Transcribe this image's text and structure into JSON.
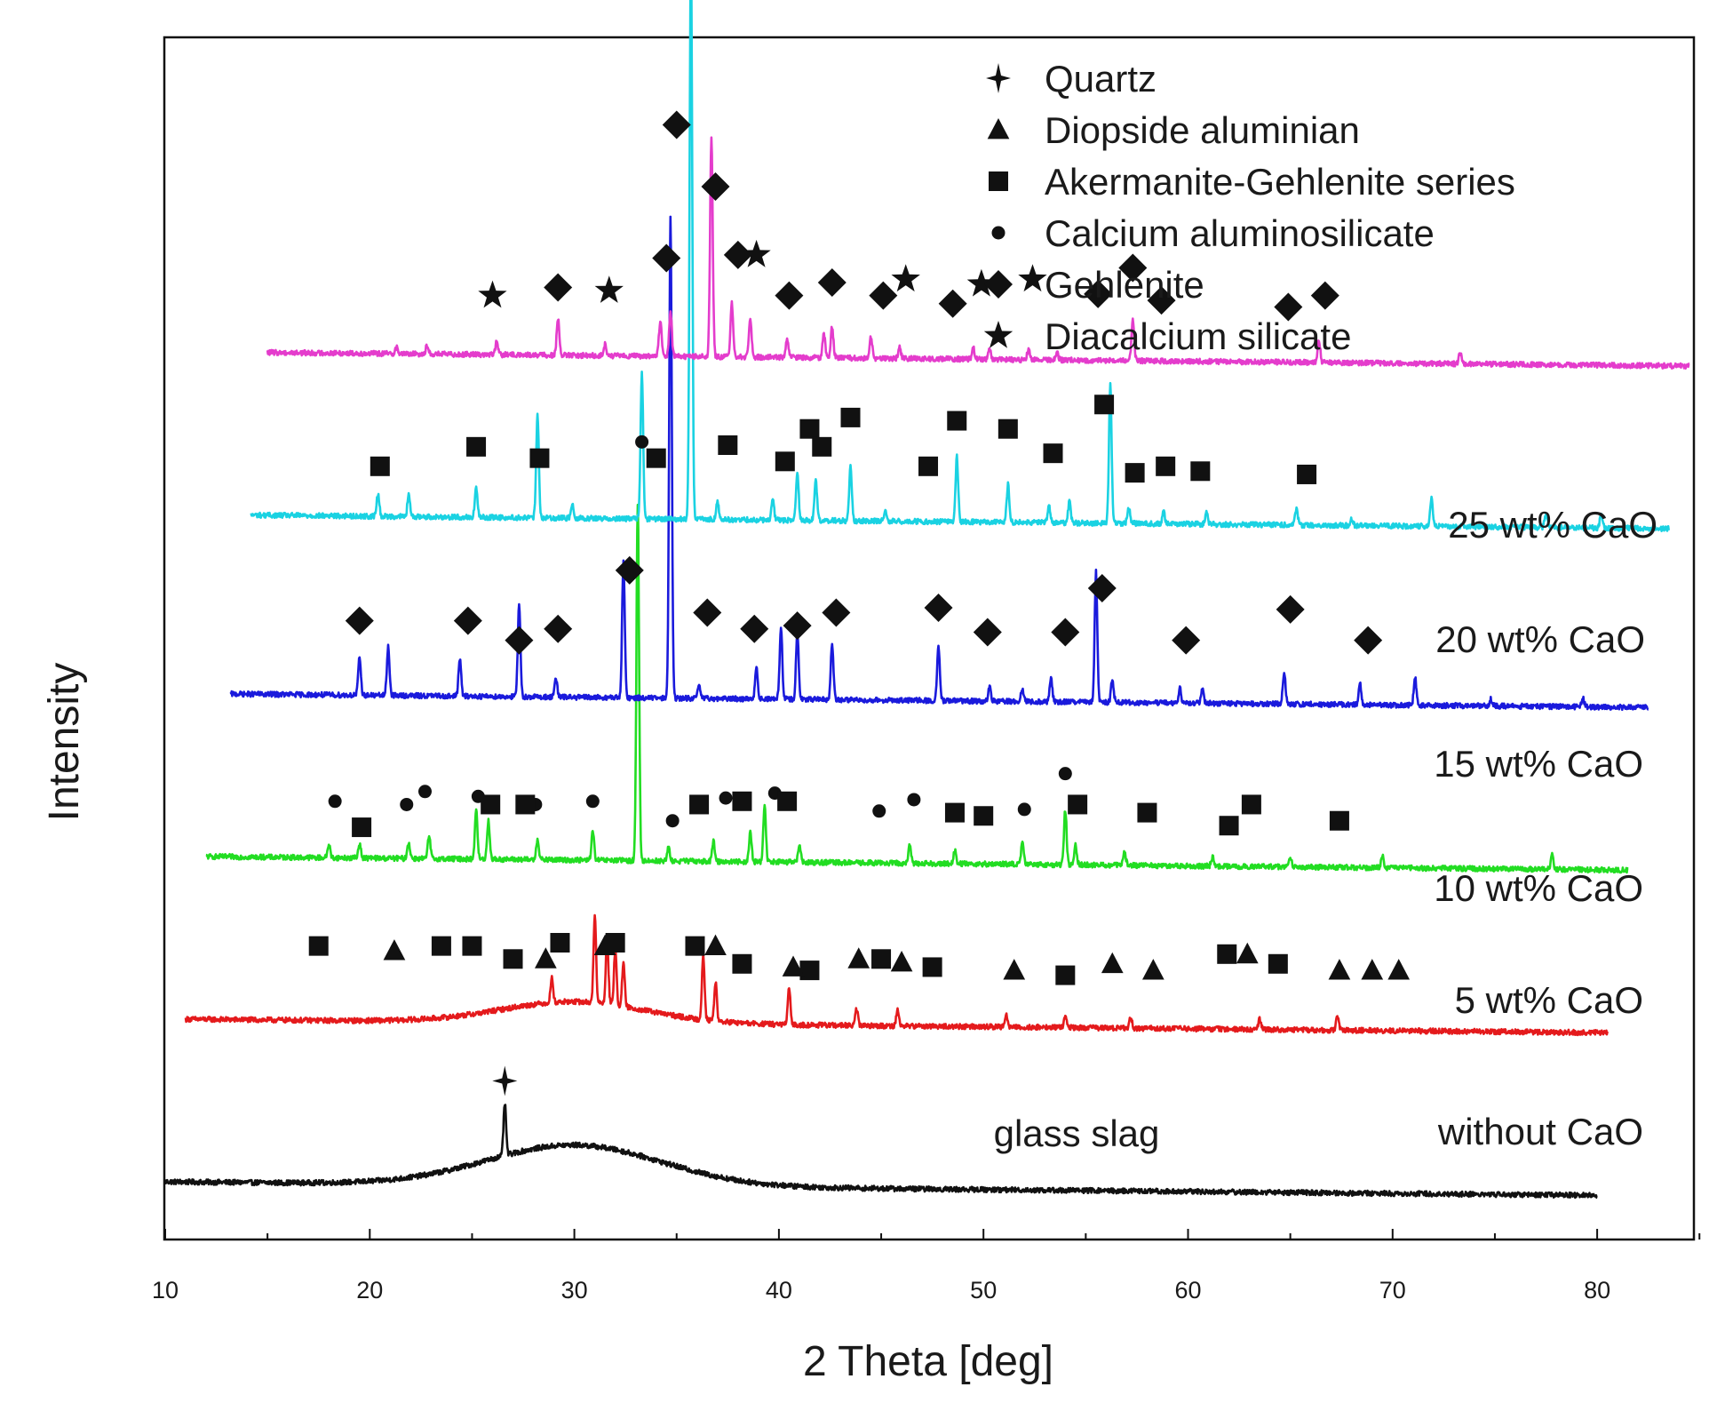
{
  "chart_data": {
    "type": "line",
    "title": "",
    "xlabel": "2 Theta [deg]",
    "ylabel": "Intensity",
    "xlim": [
      10,
      85
    ],
    "x_ticks": [
      10,
      20,
      30,
      40,
      50,
      60,
      70,
      80
    ],
    "y_units": "arbitrary (stacked, offset traces)",
    "grid": false,
    "legend_position": "top-right",
    "legend": [
      {
        "phase": "quartz",
        "symbol": "cross",
        "label": "Quartz"
      },
      {
        "phase": "diopside",
        "symbol": "triangle",
        "label": "Diopside aluminian"
      },
      {
        "phase": "akermanite",
        "symbol": "square",
        "label": "Akermanite-Gehlenite series"
      },
      {
        "phase": "calcium_aluminosilicate",
        "symbol": "circle",
        "label": "Calcium aluminosilicate"
      },
      {
        "phase": "gehlenite",
        "symbol": "diamond",
        "label": "Gehlenite"
      },
      {
        "phase": "dicalcium_silicate",
        "symbol": "star",
        "label": "Diacalcium silicate"
      }
    ],
    "annotations": [
      {
        "text": "glass slag",
        "x": 45,
        "y": 8
      }
    ],
    "series": [
      {
        "name": "without CaO",
        "color": "#111111",
        "x_start": 10,
        "x_end": 80,
        "baseline": 0,
        "peaks": [
          [
            26.6,
            3.2
          ]
        ],
        "humps": [
          [
            30,
            2.5,
            6
          ]
        ],
        "markers": [
          {
            "phase": "quartz",
            "points": [
              [
                26.6,
                6.2
              ]
            ]
          }
        ]
      },
      {
        "name": "5 wt% CaO",
        "color": "#e41a1c",
        "x_start": 11,
        "x_end": 80.5,
        "baseline": 10,
        "peaks": [
          [
            28.9,
            1.5
          ],
          [
            31.0,
            5.3
          ],
          [
            31.6,
            4.0
          ],
          [
            32.0,
            3.4
          ],
          [
            32.4,
            2.6
          ],
          [
            36.3,
            4.0
          ],
          [
            36.9,
            2.4
          ],
          [
            40.5,
            2.2
          ],
          [
            43.8,
            1.0
          ],
          [
            45.8,
            1.0
          ],
          [
            51.1,
            0.8
          ],
          [
            54.0,
            0.8
          ],
          [
            57.2,
            0.7
          ],
          [
            63.5,
            0.6
          ],
          [
            67.3,
            0.8
          ]
        ],
        "humps": [
          [
            30,
            1.3,
            5
          ]
        ],
        "markers": [
          {
            "phase": "akermanite",
            "points": [
              [
                17.5,
                4.5
              ],
              [
                23.5,
                4.5
              ],
              [
                25.0,
                4.5
              ],
              [
                27.0,
                3.7
              ],
              [
                29.3,
                4.7
              ],
              [
                32.0,
                4.7
              ],
              [
                35.9,
                4.5
              ],
              [
                38.2,
                3.4
              ],
              [
                41.5,
                3.0
              ],
              [
                45.0,
                3.7
              ],
              [
                47.5,
                3.2
              ],
              [
                54.0,
                2.7
              ],
              [
                61.9,
                4.0
              ],
              [
                64.4,
                3.4
              ]
            ]
          },
          {
            "phase": "diopside",
            "points": [
              [
                21.2,
                4.2
              ],
              [
                28.6,
                3.7
              ],
              [
                31.5,
                4.5
              ],
              [
                36.9,
                4.5
              ],
              [
                40.7,
                3.2
              ],
              [
                43.9,
                3.7
              ],
              [
                46.0,
                3.5
              ],
              [
                51.5,
                3.0
              ],
              [
                56.3,
                3.4
              ],
              [
                58.3,
                3.0
              ],
              [
                62.9,
                4.0
              ],
              [
                67.4,
                3.0
              ],
              [
                69.0,
                3.0
              ],
              [
                70.3,
                3.0
              ]
            ]
          }
        ]
      },
      {
        "name": "10 wt% CaO",
        "color": "#22dd22",
        "x_start": 12,
        "x_end": 81.5,
        "baseline": 20,
        "peaks": [
          [
            18.0,
            0.8
          ],
          [
            19.5,
            0.9
          ],
          [
            21.9,
            1.0
          ],
          [
            22.9,
            1.4
          ],
          [
            25.2,
            3.0
          ],
          [
            25.8,
            2.4
          ],
          [
            28.2,
            1.3
          ],
          [
            30.9,
            1.8
          ],
          [
            33.1,
            22.0
          ],
          [
            34.6,
            0.8
          ],
          [
            36.8,
            1.2
          ],
          [
            38.6,
            1.8
          ],
          [
            39.3,
            3.4
          ],
          [
            41.0,
            1.1
          ],
          [
            46.4,
            1.1
          ],
          [
            48.6,
            0.8
          ],
          [
            51.9,
            1.3
          ],
          [
            54.0,
            3.4
          ],
          [
            54.5,
            1.2
          ],
          [
            56.9,
            0.8
          ],
          [
            61.2,
            0.6
          ],
          [
            65.0,
            0.6
          ],
          [
            69.5,
            0.7
          ],
          [
            77.8,
            0.9
          ]
        ],
        "humps": [],
        "markers": [
          {
            "phase": "calcium_aluminosilicate",
            "points": [
              [
                18.3,
                3.4
              ],
              [
                21.8,
                3.2
              ],
              [
                22.7,
                4.0
              ],
              [
                25.3,
                3.7
              ],
              [
                28.1,
                3.2
              ],
              [
                30.9,
                3.4
              ],
              [
                34.8,
                2.2
              ],
              [
                37.4,
                3.6
              ],
              [
                39.8,
                3.9
              ],
              [
                44.9,
                2.8
              ],
              [
                46.6,
                3.5
              ],
              [
                52.0,
                2.9
              ],
              [
                54.0,
                5.1
              ]
            ]
          },
          {
            "phase": "akermanite",
            "points": [
              [
                19.6,
                1.8
              ],
              [
                25.9,
                3.2
              ],
              [
                27.6,
                3.2
              ],
              [
                36.1,
                3.2
              ],
              [
                38.2,
                3.4
              ],
              [
                40.4,
                3.4
              ],
              [
                48.6,
                2.7
              ],
              [
                50.0,
                2.5
              ],
              [
                54.6,
                3.2
              ],
              [
                58.0,
                2.7
              ],
              [
                62.0,
                1.9
              ],
              [
                63.1,
                3.2
              ],
              [
                67.4,
                2.2
              ]
            ]
          }
        ]
      },
      {
        "name": "15 wt% CaO",
        "color": "#1a1adc",
        "x_start": 13.2,
        "x_end": 82.5,
        "baseline": 30,
        "peaks": [
          [
            19.5,
            2.3
          ],
          [
            20.9,
            3.0
          ],
          [
            24.4,
            2.3
          ],
          [
            27.3,
            5.6
          ],
          [
            29.1,
            1.1
          ],
          [
            32.4,
            8.3
          ],
          [
            34.7,
            29.5
          ],
          [
            36.1,
            0.8
          ],
          [
            38.9,
            2.0
          ],
          [
            40.1,
            4.4
          ],
          [
            40.9,
            4.1
          ],
          [
            42.6,
            3.4
          ],
          [
            47.8,
            3.4
          ],
          [
            50.3,
            0.9
          ],
          [
            51.9,
            0.8
          ],
          [
            53.3,
            1.4
          ],
          [
            55.5,
            8.0
          ],
          [
            56.3,
            1.4
          ],
          [
            59.6,
            0.9
          ],
          [
            60.7,
            0.9
          ],
          [
            64.7,
            2.0
          ],
          [
            68.4,
            1.3
          ],
          [
            71.1,
            1.7
          ],
          [
            74.8,
            0.4
          ],
          [
            79.3,
            0.6
          ]
        ],
        "humps": [],
        "markers": [
          {
            "phase": "gehlenite",
            "points": [
              [
                19.5,
                4.5
              ],
              [
                24.8,
                4.5
              ],
              [
                27.3,
                3.3
              ],
              [
                29.2,
                4.0
              ],
              [
                32.7,
                7.6
              ],
              [
                36.5,
                5.0
              ],
              [
                38.8,
                4.0
              ],
              [
                40.9,
                4.2
              ],
              [
                42.8,
                5.0
              ],
              [
                47.8,
                5.3
              ],
              [
                50.2,
                3.8
              ],
              [
                54.0,
                3.8
              ],
              [
                55.8,
                6.5
              ],
              [
                59.9,
                3.3
              ],
              [
                65.0,
                5.2
              ],
              [
                68.8,
                3.3
              ]
            ]
          }
        ]
      },
      {
        "name": "20 wt% CaO",
        "color": "#1ad2e2",
        "x_start": 14.2,
        "x_end": 83.5,
        "baseline": 41,
        "peaks": [
          [
            20.4,
            1.4
          ],
          [
            21.9,
            1.3
          ],
          [
            25.2,
            1.8
          ],
          [
            28.2,
            6.4
          ],
          [
            29.9,
            0.9
          ],
          [
            33.3,
            8.9
          ],
          [
            35.7,
            35.5
          ],
          [
            37.0,
            1.1
          ],
          [
            39.7,
            1.2
          ],
          [
            40.9,
            2.9
          ],
          [
            41.8,
            2.5
          ],
          [
            43.5,
            3.3
          ],
          [
            45.2,
            0.6
          ],
          [
            48.7,
            4.0
          ],
          [
            51.2,
            2.3
          ],
          [
            53.2,
            1.0
          ],
          [
            54.2,
            1.3
          ],
          [
            56.2,
            8.5
          ],
          [
            57.1,
            1.0
          ],
          [
            58.8,
            0.8
          ],
          [
            60.9,
            0.7
          ],
          [
            65.3,
            1.0
          ],
          [
            68.0,
            0.4
          ],
          [
            71.9,
            1.7
          ],
          [
            77.5,
            0.9
          ],
          [
            80.2,
            0.9
          ]
        ],
        "humps": [],
        "markers": [
          {
            "phase": "akermanite",
            "points": [
              [
                20.5,
                3.0
              ],
              [
                25.2,
                4.2
              ],
              [
                28.3,
                3.5
              ],
              [
                34.0,
                3.5
              ],
              [
                37.5,
                4.3
              ],
              [
                40.3,
                3.3
              ],
              [
                41.5,
                5.3
              ],
              [
                42.1,
                4.2
              ],
              [
                43.5,
                6.0
              ],
              [
                47.3,
                3.0
              ],
              [
                48.7,
                5.8
              ],
              [
                51.2,
                5.3
              ],
              [
                53.4,
                3.8
              ],
              [
                55.9,
                6.8
              ],
              [
                57.4,
                2.6
              ],
              [
                58.9,
                3.0
              ],
              [
                60.6,
                2.7
              ],
              [
                65.8,
                2.5
              ]
            ]
          },
          {
            "phase": "calcium_aluminosilicate",
            "points": [
              [
                33.3,
                4.5
              ]
            ]
          }
        ]
      },
      {
        "name": "25 wt% CaO",
        "color": "#e43ccc",
        "x_start": 15,
        "x_end": 84.5,
        "baseline": 51,
        "peaks": [
          [
            21.3,
            0.4
          ],
          [
            22.8,
            0.5
          ],
          [
            26.2,
            0.8
          ],
          [
            29.2,
            2.2
          ],
          [
            31.5,
            0.7
          ],
          [
            34.2,
            2.2
          ],
          [
            34.7,
            2.8
          ],
          [
            36.7,
            13.4
          ],
          [
            37.7,
            3.3
          ],
          [
            38.6,
            2.3
          ],
          [
            40.4,
            1.1
          ],
          [
            42.2,
            1.5
          ],
          [
            42.6,
            1.9
          ],
          [
            44.5,
            1.3
          ],
          [
            45.9,
            0.7
          ],
          [
            49.5,
            0.7
          ],
          [
            50.3,
            0.6
          ],
          [
            52.2,
            0.6
          ],
          [
            53.6,
            0.4
          ],
          [
            57.3,
            2.5
          ],
          [
            66.4,
            1.4
          ],
          [
            73.3,
            0.7
          ]
        ],
        "humps": [],
        "markers": [
          {
            "phase": "dicalcium_silicate",
            "points": [
              [
                26.0,
                3.5
              ],
              [
                31.7,
                3.8
              ],
              [
                38.9,
                6.0
              ],
              [
                46.2,
                4.5
              ],
              [
                49.9,
                4.2
              ],
              [
                52.4,
                4.5
              ]
            ]
          },
          {
            "phase": "gehlenite",
            "points": [
              [
                29.2,
                4.0
              ],
              [
                34.5,
                5.8
              ],
              [
                35.0,
                14.0
              ],
              [
                36.9,
                10.2
              ],
              [
                38.0,
                6.0
              ],
              [
                40.5,
                3.5
              ],
              [
                42.6,
                4.3
              ],
              [
                45.1,
                3.5
              ],
              [
                48.5,
                3.0
              ],
              [
                55.6,
                3.6
              ],
              [
                57.3,
                5.2
              ],
              [
                58.7,
                3.2
              ],
              [
                64.9,
                2.8
              ],
              [
                66.7,
                3.5
              ]
            ]
          }
        ]
      }
    ]
  }
}
